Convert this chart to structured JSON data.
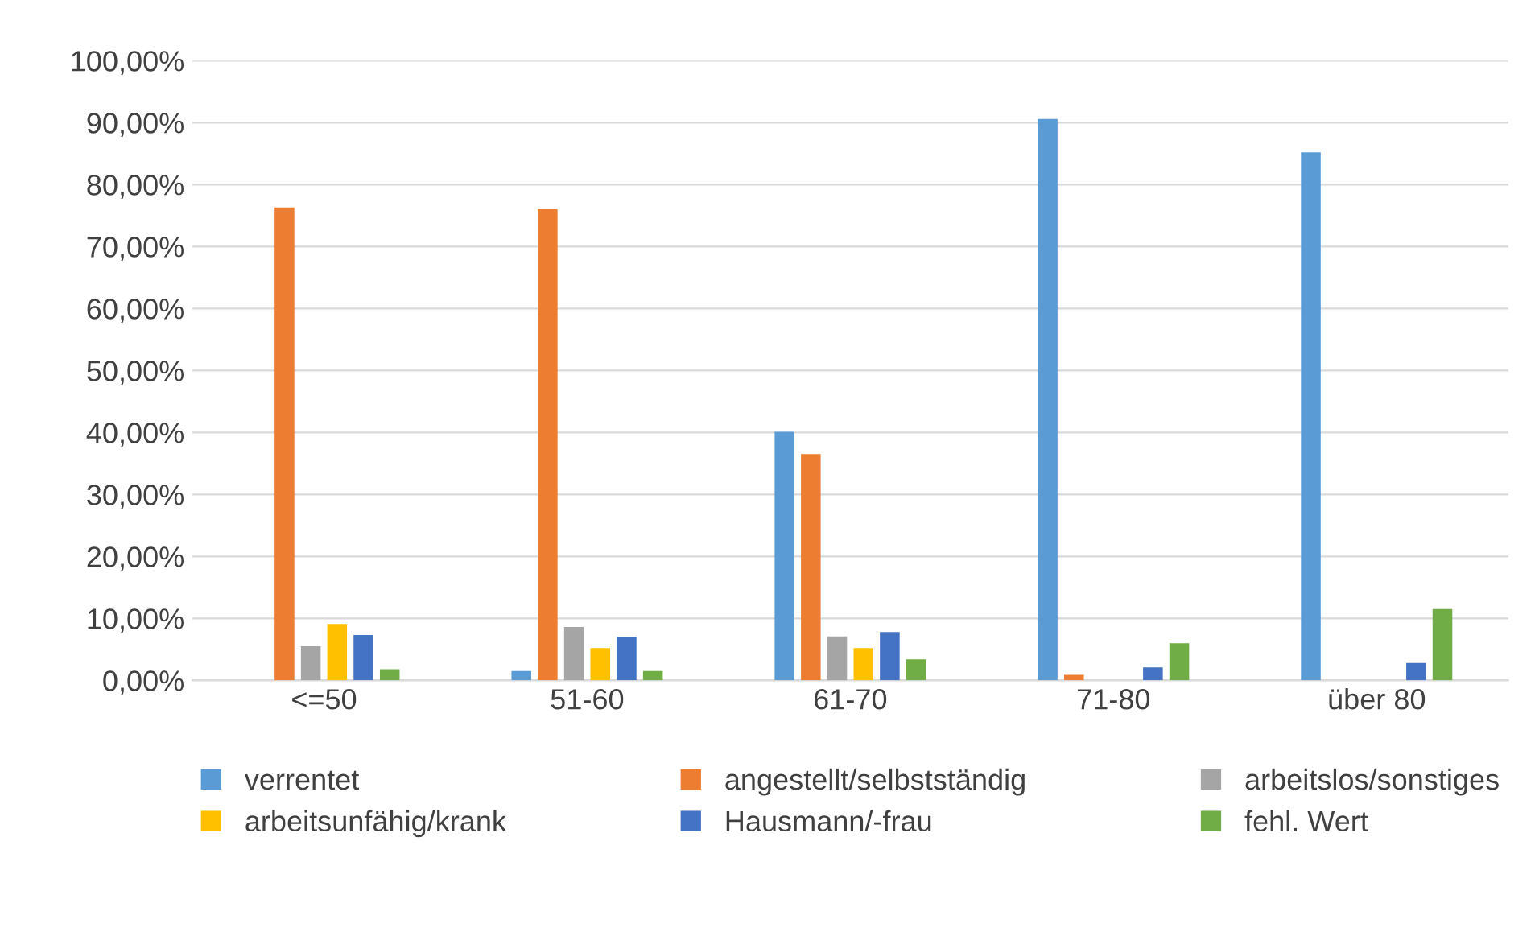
{
  "chart_data": {
    "type": "bar",
    "categories": [
      "<=50",
      "51-60",
      "61-70",
      "71-80",
      "über 80"
    ],
    "series": [
      {
        "name": "verrentet",
        "color": "#5b9bd5",
        "values": [
          0,
          1.5,
          40.1,
          90.6,
          85.2
        ]
      },
      {
        "name": "angestellt/selbstständig",
        "color": "#ed7d31",
        "values": [
          76.3,
          76.0,
          36.5,
          0.9,
          0
        ]
      },
      {
        "name": "arbeitslos/sonstiges",
        "color": "#a5a5a5",
        "values": [
          5.5,
          8.6,
          7.1,
          0,
          0
        ]
      },
      {
        "name": "arbeitsunfähig/krank",
        "color": "#ffc000",
        "values": [
          9.1,
          5.2,
          5.2,
          0,
          0
        ]
      },
      {
        "name": "Hausmann/-frau",
        "color": "#4472c4",
        "values": [
          7.3,
          7.0,
          7.8,
          2.1,
          2.8
        ]
      },
      {
        "name": "fehl. Wert",
        "color": "#70ad47",
        "values": [
          1.8,
          1.5,
          3.4,
          6.0,
          11.5
        ]
      }
    ],
    "ylim": [
      0,
      100
    ],
    "yticks": [
      {
        "value": 0,
        "label": "0,00%"
      },
      {
        "value": 10,
        "label": "10,00%"
      },
      {
        "value": 20,
        "label": "20,00%"
      },
      {
        "value": 30,
        "label": "30,00%"
      },
      {
        "value": 40,
        "label": "40,00%"
      },
      {
        "value": 50,
        "label": "50,00%"
      },
      {
        "value": 60,
        "label": "60,00%"
      },
      {
        "value": 70,
        "label": "70,00%"
      },
      {
        "value": 80,
        "label": "80,00%"
      },
      {
        "value": 90,
        "label": "90,00%"
      },
      {
        "value": 100,
        "label": "100,00%"
      }
    ],
    "grid": "y",
    "legend": "bottom"
  }
}
